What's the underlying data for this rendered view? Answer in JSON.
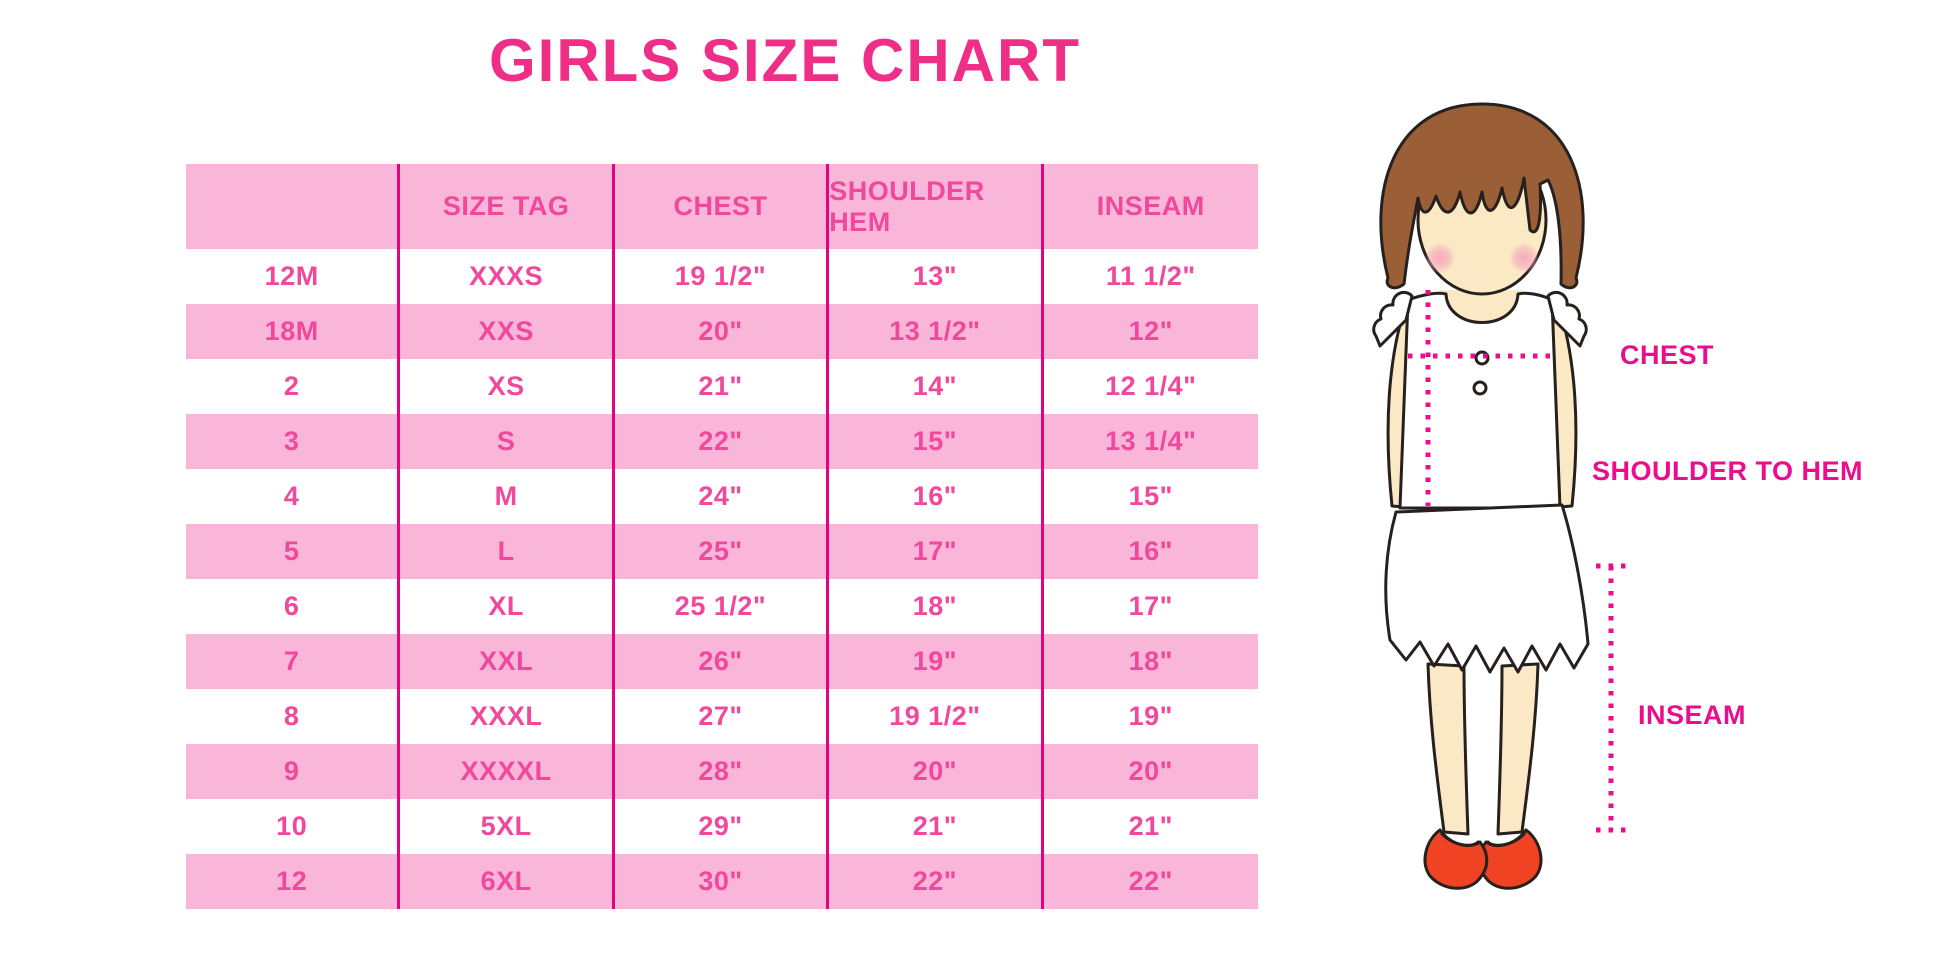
{
  "title": "GIRLS SIZE CHART",
  "chart_data": {
    "type": "table",
    "title": "GIRLS SIZE CHART",
    "columns": [
      "",
      "SIZE TAG",
      "CHEST",
      "SHOULDER HEM",
      "INSEAM"
    ],
    "rows": [
      [
        "12M",
        "XXXS",
        "19 1/2\"",
        "13\"",
        "11 1/2\""
      ],
      [
        "18M",
        "XXS",
        "20\"",
        "13 1/2\"",
        "12\""
      ],
      [
        "2",
        "XS",
        "21\"",
        "14\"",
        "12 1/4\""
      ],
      [
        "3",
        "S",
        "22\"",
        "15\"",
        "13 1/4\""
      ],
      [
        "4",
        "M",
        "24\"",
        "16\"",
        "15\""
      ],
      [
        "5",
        "L",
        "25\"",
        "17\"",
        "16\""
      ],
      [
        "6",
        "XL",
        "25 1/2\"",
        "18\"",
        "17\""
      ],
      [
        "7",
        "XXL",
        "26\"",
        "19\"",
        "18\""
      ],
      [
        "8",
        "XXXL",
        "27\"",
        "19 1/2\"",
        "19\""
      ],
      [
        "9",
        "XXXXL",
        "28\"",
        "20\"",
        "20\""
      ],
      [
        "10",
        "5XL",
        "29\"",
        "21\"",
        "21\""
      ],
      [
        "12",
        "6XL",
        "30\"",
        "22\"",
        "22\""
      ]
    ],
    "row_striping": "header pink, then alternating white/pink starting white",
    "grid": "vertical magenta dividers only, no horizontal lines"
  },
  "diagram": {
    "description": "Cartoon girl with brown bob haircut, white ruffled sleeveless top, scalloped skirt, red Mary-Jane shoes; dotted magenta measurement guide lines",
    "labels": {
      "chest": "CHEST",
      "shoulder_to_hem": "SHOULDER TO HEM",
      "inseam": "INSEAM"
    }
  },
  "colors": {
    "pink": "#FAB6D9",
    "line": "#E3057F",
    "tableText": "#F0489C",
    "title": "#EE2E87",
    "label": "#EC0C8E",
    "hair": "#9A5F36",
    "skin": "#FBE8C4",
    "shoe": "#EF4323",
    "outline": "#26201E",
    "bg": "#FFFFFF"
  }
}
